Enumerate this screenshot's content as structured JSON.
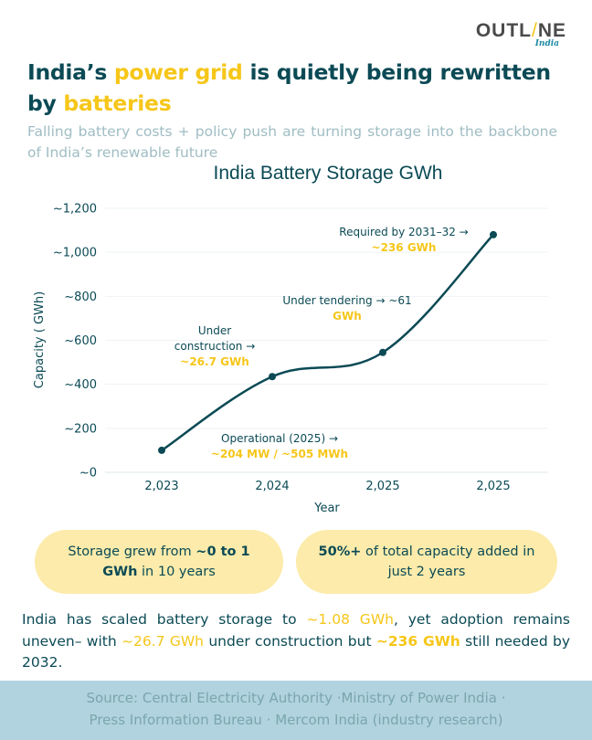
{
  "brand": {
    "logo_text_left": "OUTL",
    "logo_slash": "/",
    "logo_text_right": "NE",
    "logo_sub": "India"
  },
  "headline": {
    "part1": "India’s ",
    "highlight1": "power grid",
    "part2": " is quietly being rewritten by ",
    "highlight2": "batteries"
  },
  "subtitle": "Falling battery costs + policy push are turning storage into the backbone of India’s renewable future",
  "colors": {
    "primary": "#0b4a55",
    "accent": "#f6c619",
    "pill_bg": "#fcebaa",
    "footer_bg": "#b1d3df",
    "gridline": "#eef3f4"
  },
  "chart_data": {
    "type": "line",
    "title": "India Battery Storage GWh",
    "xlabel": "Year",
    "ylabel": "Capacity ( GWh)",
    "categories": [
      "2,023",
      "2,024",
      "2,025",
      "2,025"
    ],
    "series": [
      {
        "name": "Capacity",
        "values": [
          100,
          435,
          545,
          1080
        ]
      }
    ],
    "ylim": [
      0,
      1200
    ],
    "yticks": [
      0,
      200,
      400,
      600,
      800,
      1000,
      1200
    ],
    "ytick_labels": [
      "~0",
      "~200",
      "~400",
      "~600",
      "~800",
      "~1,000",
      "~1,200"
    ],
    "grid": true,
    "smooth": true,
    "legend": "none",
    "annotations": [
      {
        "label_lines": [
          "Operational (2025) →"
        ],
        "value_lines": [
          "~204 MW / ~505 MWh"
        ]
      },
      {
        "label_lines": [
          "Under",
          "construction →"
        ],
        "value_lines": [
          "~26.7 GWh"
        ]
      },
      {
        "label_lines": [
          "Under tendering → ~61"
        ],
        "value_lines": [
          "GWh"
        ]
      },
      {
        "label_lines": [
          "Required by 2031–32 →"
        ],
        "value_lines": [
          "~236 GWh"
        ]
      }
    ]
  },
  "pills": [
    {
      "pre": "Storage grew from ",
      "bold": "~0 to 1 GWh",
      "post": " in 10 years"
    },
    {
      "pre": "",
      "bold": "50%+",
      "post": " of total capacity added in just 2 years"
    }
  ],
  "summary": {
    "t1": "India has scaled battery storage to ",
    "h1": "~1.08 GWh",
    "t2": ", yet adoption remains uneven– with ",
    "h2": "~26.7 GWh",
    "t3": " under construction but ",
    "h3": "~236 GWh",
    "t4": " still needed by 2032."
  },
  "footer": {
    "line1": "Source: Central Electricity Authority ·Ministry of Power India ·",
    "line2": "Press Information Bureau  · Mercom India (industry research)"
  }
}
